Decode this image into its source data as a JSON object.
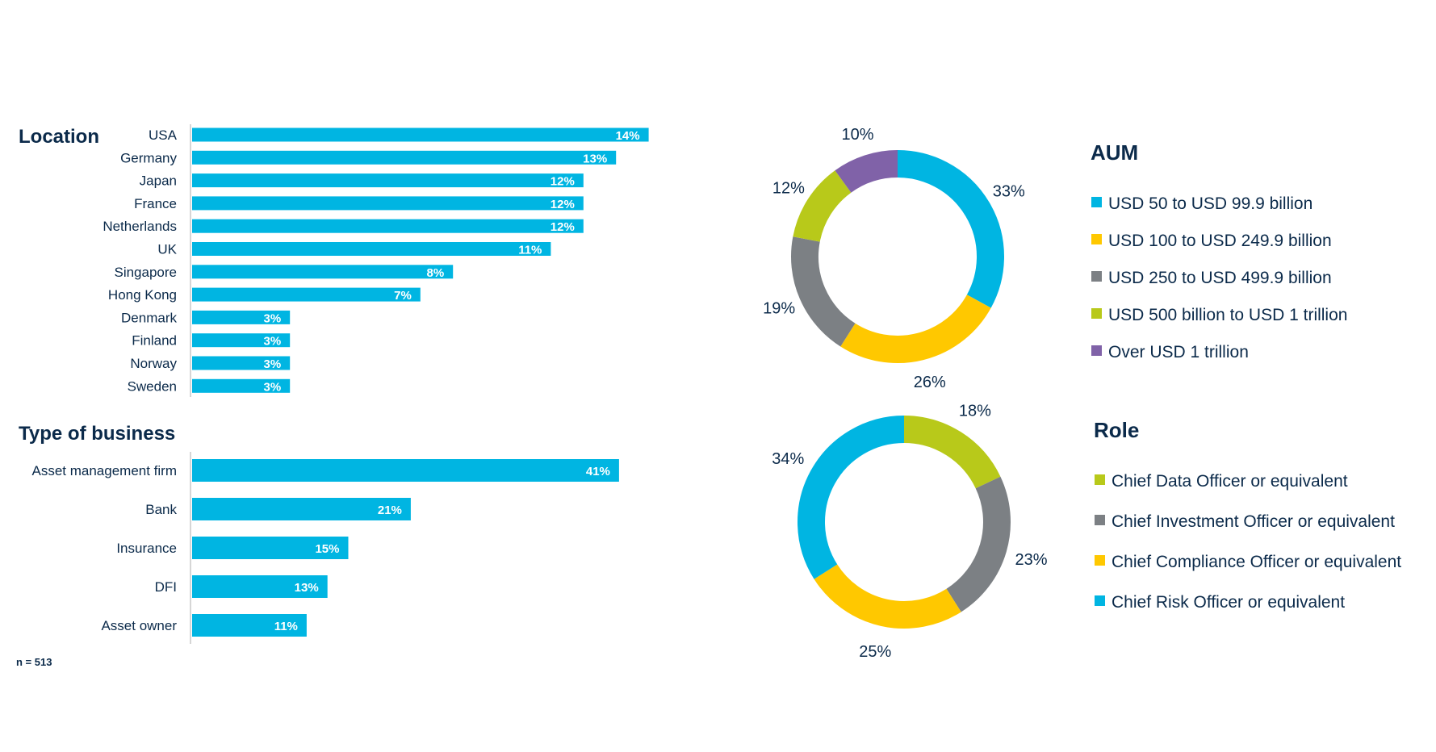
{
  "chart_data": [
    {
      "type": "bar",
      "title": "Location",
      "categories": [
        "USA",
        "Germany",
        "Japan",
        "France",
        "Netherlands",
        "UK",
        "Singapore",
        "Hong Kong",
        "Denmark",
        "Finland",
        "Norway",
        "Sweden"
      ],
      "values": [
        14,
        13,
        12,
        12,
        12,
        11,
        8,
        7,
        3,
        3,
        3,
        3
      ],
      "data_labels": [
        "14%",
        "13%",
        "12%",
        "12%",
        "12%",
        "11%",
        "8%",
        "7%",
        "3%",
        "3%",
        "3%",
        "3%"
      ],
      "unit": "%",
      "color": "#00b5e2"
    },
    {
      "type": "bar",
      "title": "Type of business",
      "categories": [
        "Asset management firm",
        "Bank",
        "Insurance",
        "DFI",
        "Asset owner"
      ],
      "values": [
        41,
        21,
        15,
        13,
        11
      ],
      "data_labels": [
        "41%",
        "21%",
        "15%",
        "13%",
        "11%"
      ],
      "unit": "%",
      "color": "#00b5e2"
    },
    {
      "type": "pie",
      "title": "AUM",
      "categories": [
        "USD 50 to USD 99.9 billion",
        "USD 100 to USD 249.9 billion",
        "USD 250 to USD 499.9 billion",
        "USD 500 billion to USD 1 trillion",
        "Over USD 1 trillion"
      ],
      "values": [
        33,
        26,
        19,
        12,
        10
      ],
      "data_labels": [
        "33%",
        "26%",
        "19%",
        "12%",
        "10%"
      ],
      "colors": [
        "#00b5e2",
        "#ffc800",
        "#7c8084",
        "#b8c91a",
        "#8062a8"
      ],
      "donut": true
    },
    {
      "type": "pie",
      "title": "Role",
      "categories": [
        "Chief Data Officer or equivalent",
        "Chief Investment Officer or equivalent",
        "Chief Compliance Officer or equivalent",
        "Chief Risk Officer or equivalent"
      ],
      "values": [
        18,
        23,
        25,
        34
      ],
      "data_labels": [
        "18%",
        "23%",
        "25%",
        "34%"
      ],
      "colors": [
        "#b8c91a",
        "#7c8084",
        "#ffc800",
        "#00b5e2"
      ],
      "donut": true
    }
  ],
  "note": "n = 513"
}
